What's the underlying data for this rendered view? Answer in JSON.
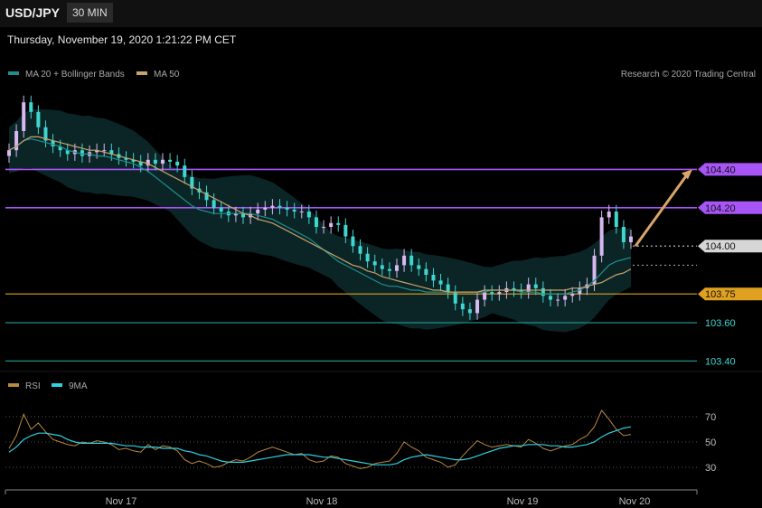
{
  "header": {
    "pair": "USD/JPY",
    "timeframe": "30 MIN"
  },
  "datetime": "Thursday, November 19, 2020 1:21:22 PM CET",
  "copyright": "Research © 2020 Trading Central",
  "colors": {
    "bull": "#d7b8f0",
    "bear": "#3fd6d0",
    "ma20": "#1c8f8c",
    "ma50": "#c6a36a",
    "band": "#0d2b2d",
    "purple": "#a855f7",
    "orange": "#e0a020",
    "teal": "#1f8f86",
    "arrow": "#d9a56a",
    "rsi": "#b8893f",
    "rsi_ma": "#2fd0e0"
  },
  "chart_data": [
    {
      "type": "line",
      "subtype": "candlestick",
      "legend": [
        "MA 20 + Bollinger Bands",
        "MA 50"
      ],
      "legend_position": "top-left",
      "x_ticks": [
        "Nov 17",
        "Nov 18",
        "Nov 19",
        "Nov 20"
      ],
      "ylim": [
        103.35,
        104.85
      ],
      "key_levels": [
        {
          "label": "104.40",
          "value": 104.4,
          "style": "resistance"
        },
        {
          "label": "104.20",
          "value": 104.2,
          "style": "resistance"
        },
        {
          "label": "104.00",
          "value": 104.0,
          "style": "current"
        },
        {
          "label": "103.75",
          "value": 103.75,
          "style": "pivot"
        },
        {
          "label": "103.60",
          "value": 103.6,
          "style": "support"
        },
        {
          "label": "103.40",
          "value": 103.4,
          "style": "support"
        }
      ],
      "forecast": {
        "from": 104.0,
        "to": 104.4,
        "direction": "up"
      },
      "series": [
        {
          "name": "close",
          "values": [
            104.5,
            104.6,
            104.75,
            104.7,
            104.62,
            104.55,
            104.52,
            104.5,
            104.48,
            104.5,
            104.47,
            104.49,
            104.5,
            104.5,
            104.48,
            104.46,
            104.45,
            104.44,
            104.42,
            104.45,
            104.43,
            104.45,
            104.44,
            104.42,
            104.36,
            104.3,
            104.28,
            104.24,
            104.2,
            104.18,
            104.16,
            104.17,
            104.15,
            104.17,
            104.19,
            104.2,
            104.21,
            104.2,
            104.19,
            104.18,
            104.18,
            104.15,
            104.1,
            104.1,
            104.12,
            104.11,
            104.05,
            104.0,
            103.96,
            103.92,
            103.9,
            103.88,
            103.87,
            103.9,
            103.95,
            103.9,
            103.88,
            103.85,
            103.82,
            103.8,
            103.76,
            103.7,
            103.67,
            103.65,
            103.72,
            103.76,
            103.75,
            103.76,
            103.78,
            103.77,
            103.76,
            103.8,
            103.78,
            103.74,
            103.72,
            103.72,
            103.74,
            103.75,
            103.78,
            103.8,
            103.95,
            104.15,
            104.18,
            104.1,
            104.02,
            104.05
          ]
        },
        {
          "name": "MA 20",
          "values": [
            104.5,
            104.52,
            104.55,
            104.56,
            104.55,
            104.54,
            104.53,
            104.52,
            104.5,
            104.49,
            104.48,
            104.48,
            104.47,
            104.47,
            104.46,
            104.45,
            104.44,
            104.43,
            104.41,
            104.39,
            104.36,
            104.33,
            104.3,
            104.27,
            104.24,
            104.21,
            104.19,
            104.18,
            104.17,
            104.17,
            104.17,
            104.17,
            104.17,
            104.17,
            104.16,
            104.15,
            104.14,
            104.12,
            104.1,
            104.08,
            104.06,
            104.04,
            104.01,
            103.98,
            103.95,
            103.92,
            103.9,
            103.88,
            103.86,
            103.84,
            103.82,
            103.8,
            103.79,
            103.79,
            103.78,
            103.77,
            103.77,
            103.76,
            103.76,
            103.76,
            103.76,
            103.76,
            103.76,
            103.76,
            103.76,
            103.76,
            103.77,
            103.77,
            103.77,
            103.77,
            103.76,
            103.76,
            103.76,
            103.75,
            103.75,
            103.75,
            103.75,
            103.76,
            103.77,
            103.79,
            103.82,
            103.86,
            103.9,
            103.92,
            103.93,
            103.94
          ]
        },
        {
          "name": "MA 50",
          "values": [
            104.5,
            104.52,
            104.55,
            104.57,
            104.57,
            104.56,
            104.55,
            104.54,
            104.53,
            104.52,
            104.51,
            104.5,
            104.5,
            104.49,
            104.48,
            104.47,
            104.46,
            104.45,
            104.44,
            104.43,
            104.41,
            104.39,
            104.37,
            104.35,
            104.33,
            104.31,
            104.29,
            104.27,
            104.25,
            104.23,
            104.21,
            104.19,
            104.17,
            104.16,
            104.14,
            104.13,
            104.12,
            104.1,
            104.08,
            104.06,
            104.04,
            104.02,
            104.0,
            103.98,
            103.96,
            103.94,
            103.92,
            103.9,
            103.89,
            103.87,
            103.86,
            103.84,
            103.83,
            103.82,
            103.81,
            103.8,
            103.79,
            103.78,
            103.77,
            103.77,
            103.76,
            103.76,
            103.76,
            103.76,
            103.76,
            103.77,
            103.77,
            103.77,
            103.77,
            103.77,
            103.77,
            103.77,
            103.77,
            103.77,
            103.77,
            103.77,
            103.77,
            103.78,
            103.78,
            103.79,
            103.8,
            103.81,
            103.83,
            103.85,
            103.86,
            103.88
          ]
        }
      ]
    },
    {
      "type": "line",
      "legend": [
        "RSI",
        "9MA"
      ],
      "legend_position": "top-left",
      "y_ticks": [
        70,
        50,
        30
      ],
      "ylim": [
        15,
        85
      ],
      "series": [
        {
          "name": "RSI",
          "values": [
            45,
            55,
            72,
            60,
            65,
            58,
            52,
            50,
            48,
            47,
            50,
            49,
            51,
            50,
            48,
            44,
            45,
            43,
            42,
            48,
            44,
            47,
            46,
            43,
            36,
            33,
            35,
            33,
            30,
            31,
            34,
            36,
            35,
            38,
            42,
            44,
            46,
            44,
            42,
            40,
            41,
            36,
            34,
            35,
            39,
            38,
            33,
            31,
            29,
            30,
            33,
            34,
            35,
            41,
            50,
            46,
            43,
            38,
            36,
            34,
            30,
            32,
            39,
            45,
            51,
            48,
            46,
            47,
            48,
            47,
            46,
            52,
            49,
            45,
            43,
            45,
            47,
            48,
            52,
            55,
            62,
            75,
            68,
            60,
            55,
            56
          ]
        },
        {
          "name": "9MA",
          "values": [
            42,
            46,
            52,
            55,
            57,
            57,
            56,
            55,
            52,
            50,
            49,
            49,
            49,
            49,
            49,
            48,
            47,
            47,
            46,
            46,
            46,
            45,
            45,
            45,
            43,
            42,
            40,
            39,
            37,
            35,
            34,
            34,
            34,
            35,
            36,
            37,
            38,
            39,
            40,
            40,
            40,
            40,
            39,
            38,
            38,
            37,
            36,
            35,
            34,
            33,
            32,
            32,
            32,
            33,
            36,
            38,
            39,
            40,
            39,
            38,
            37,
            36,
            36,
            37,
            39,
            41,
            43,
            45,
            46,
            47,
            47,
            48,
            48,
            48,
            47,
            47,
            46,
            46,
            47,
            48,
            50,
            54,
            57,
            59,
            61,
            62
          ]
        }
      ]
    }
  ]
}
